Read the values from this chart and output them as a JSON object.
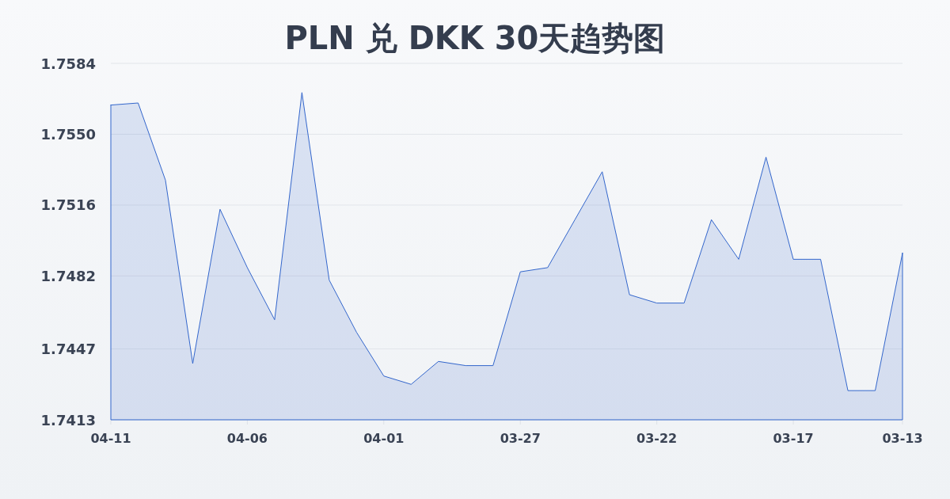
{
  "chart_data": {
    "type": "area",
    "title": "PLN 兑 DKK 30天趋势图",
    "categories": [
      "04-11",
      null,
      null,
      null,
      null,
      "04-06",
      null,
      null,
      null,
      null,
      "04-01",
      null,
      null,
      null,
      null,
      "03-27",
      null,
      null,
      null,
      null,
      "03-22",
      null,
      null,
      null,
      null,
      "03-17",
      null,
      null,
      null,
      "03-13"
    ],
    "values": [
      1.7564,
      1.7565,
      1.7528,
      1.744,
      1.7514,
      1.7486,
      1.7461,
      1.757,
      1.748,
      1.7455,
      1.7434,
      1.743,
      1.7441,
      1.7439,
      1.7439,
      1.7484,
      1.7486,
      1.7509,
      1.7532,
      1.7473,
      1.7469,
      1.7469,
      1.7509,
      1.749,
      1.7539,
      1.749,
      1.749,
      1.7427,
      1.7427,
      1.7493
    ],
    "color": "#3366cc",
    "ylim": [
      1.7413,
      1.7584
    ],
    "yticks": [
      1.7413,
      1.7447,
      1.7482,
      1.7516,
      {
        "value": 1.755,
        "label": "1.7550"
      },
      1.7584
    ],
    "grid": "y"
  }
}
